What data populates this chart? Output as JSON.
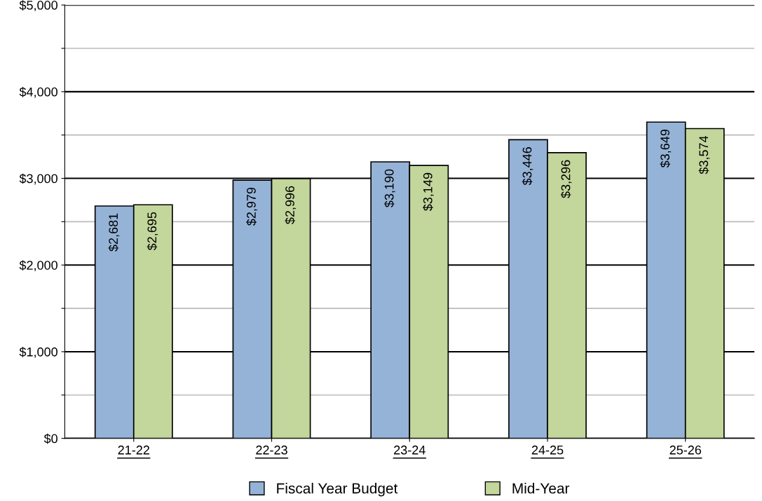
{
  "chart_data": {
    "type": "bar",
    "categories": [
      "21-22",
      "22-23",
      "23-24",
      "24-25",
      "25-26"
    ],
    "series": [
      {
        "name": "Fiscal Year Budget",
        "color": "#95b3d7",
        "values": [
          2681,
          2979,
          3190,
          3446,
          3649
        ],
        "value_labels": [
          "$2,681",
          "$2,979",
          "$3,190",
          "$3,446",
          "$3,649"
        ]
      },
      {
        "name": "Mid-Year",
        "color": "#c3d69b",
        "values": [
          2695,
          2996,
          3149,
          3296,
          3574
        ],
        "value_labels": [
          "$2,695",
          "$2,996",
          "$3,149",
          "$3,296",
          "$3,574"
        ]
      }
    ],
    "ylim": [
      0,
      5000
    ],
    "yticks": [
      {
        "value": 0,
        "label": "$0"
      },
      {
        "value": 500,
        "label": null
      },
      {
        "value": 1000,
        "label": "$1,000"
      },
      {
        "value": 1500,
        "label": null
      },
      {
        "value": 2000,
        "label": "$2,000"
      },
      {
        "value": 2500,
        "label": null
      },
      {
        "value": 3000,
        "label": "$3,000"
      },
      {
        "value": 3500,
        "label": null
      },
      {
        "value": 4000,
        "label": "$4,000"
      },
      {
        "value": 4500,
        "label": null
      },
      {
        "value": 5000,
        "label": "$5,000"
      }
    ],
    "grid": "y",
    "legend": "bottom"
  }
}
